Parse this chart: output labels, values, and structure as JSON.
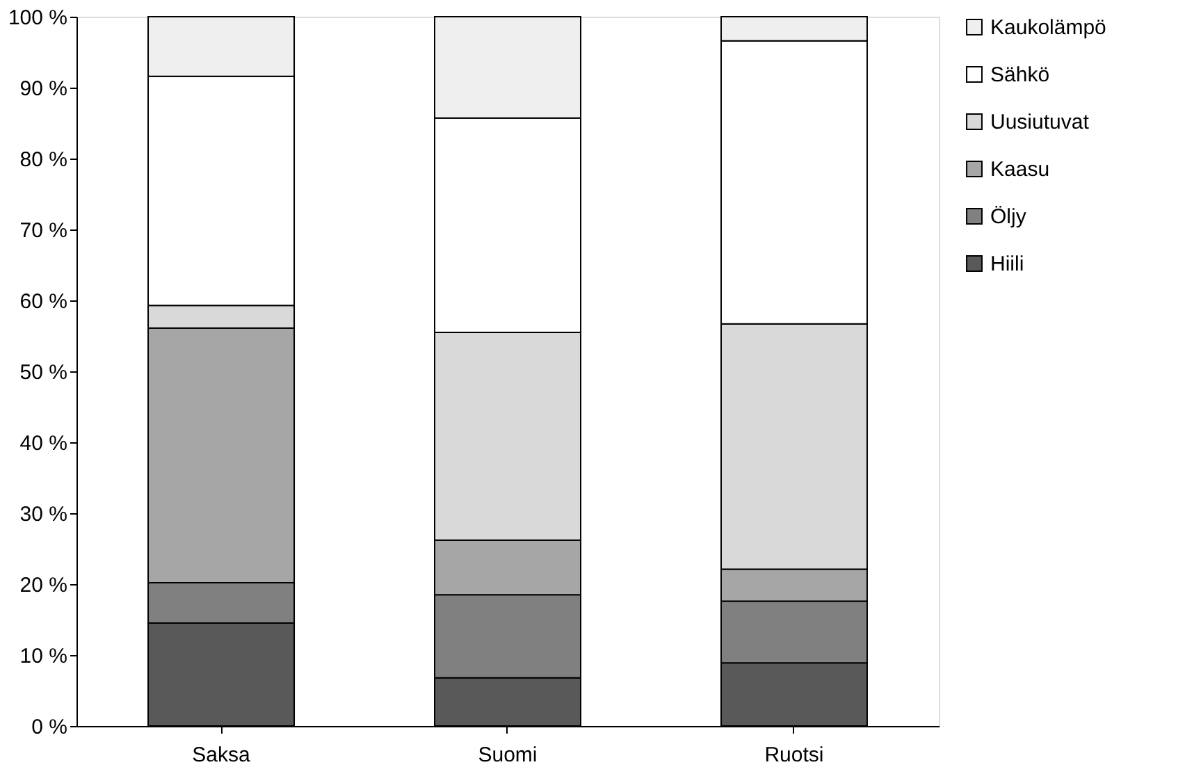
{
  "chart_data": {
    "type": "bar",
    "stacked": true,
    "categories": [
      "Saksa",
      "Suomi",
      "Ruotsi"
    ],
    "series": [
      {
        "name": "Hiili",
        "color": "#595959",
        "values": [
          14.5,
          6.8,
          8.9
        ]
      },
      {
        "name": "Öljy",
        "color": "#808080",
        "values": [
          5.7,
          11.7,
          8.7
        ]
      },
      {
        "name": "Kaasu",
        "color": "#a6a6a6",
        "values": [
          35.9,
          7.7,
          4.5
        ]
      },
      {
        "name": "Uusiutuvat",
        "color": "#d9d9d9",
        "values": [
          3.2,
          29.3,
          34.6
        ]
      },
      {
        "name": "Sähkö",
        "color": "#ffffff",
        "values": [
          32.3,
          30.2,
          39.9
        ]
      },
      {
        "name": "Kaukolämpö",
        "color": "#efefef",
        "values": [
          8.4,
          14.3,
          3.4
        ]
      }
    ],
    "ylim": [
      0,
      100
    ],
    "yticks": [
      {
        "value": 0,
        "label": "0 %"
      },
      {
        "value": 10,
        "label": "10 %"
      },
      {
        "value": 20,
        "label": "20 %"
      },
      {
        "value": 30,
        "label": "30 %"
      },
      {
        "value": 40,
        "label": "40 %"
      },
      {
        "value": 50,
        "label": "50 %"
      },
      {
        "value": 60,
        "label": "60 %"
      },
      {
        "value": 70,
        "label": "70 %"
      },
      {
        "value": 80,
        "label": "80 %"
      },
      {
        "value": 90,
        "label": "90 %"
      },
      {
        "value": 100,
        "label": "100 %"
      }
    ],
    "grid": false,
    "legend": "right"
  }
}
